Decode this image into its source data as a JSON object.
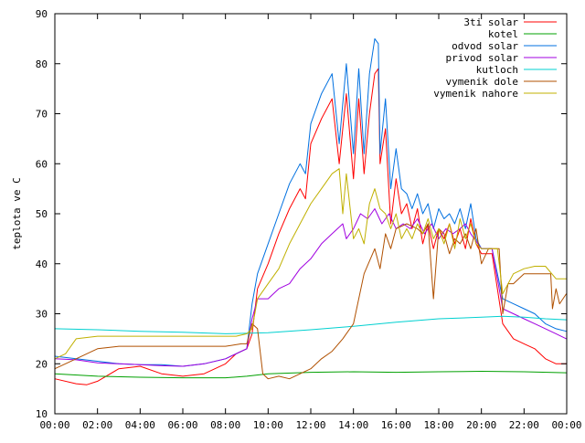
{
  "chart_data": {
    "type": "line",
    "title": "",
    "xlabel": "",
    "ylabel": "teplota ve C",
    "xlim": [
      "00:00",
      "24:00"
    ],
    "ylim": [
      10,
      90
    ],
    "x_ticks": [
      "00:00",
      "02:00",
      "04:00",
      "06:00",
      "08:00",
      "10:00",
      "12:00",
      "14:00",
      "16:00",
      "18:00",
      "20:00",
      "22:00",
      "00:00"
    ],
    "y_ticks": [
      "10",
      "20",
      "30",
      "40",
      "50",
      "60",
      "70",
      "80",
      "90"
    ],
    "legend_position": "top-right",
    "grid": false,
    "series": [
      {
        "name": "3ti solar",
        "color": "#ff0000",
        "x": [
          "00:00",
          "01:00",
          "01:30",
          "02:00",
          "03:00",
          "04:00",
          "05:00",
          "06:00",
          "07:00",
          "08:00",
          "08:30",
          "09:00",
          "09:15",
          "09:30",
          "10:00",
          "10:30",
          "11:00",
          "11:30",
          "11:45",
          "12:00",
          "12:30",
          "13:00",
          "13:20",
          "13:40",
          "14:00",
          "14:15",
          "14:30",
          "14:45",
          "15:00",
          "15:10",
          "15:15",
          "15:30",
          "15:45",
          "16:00",
          "16:15",
          "16:30",
          "16:45",
          "17:00",
          "17:15",
          "17:30",
          "17:45",
          "18:00",
          "18:15",
          "18:30",
          "18:45",
          "19:00",
          "19:15",
          "19:30",
          "19:45",
          "20:00",
          "20:30",
          "21:00",
          "21:30",
          "22:00",
          "22:30",
          "23:00",
          "23:30",
          "23:59"
        ],
        "y": [
          17,
          16,
          15.8,
          16.5,
          19,
          19.5,
          18,
          17.5,
          18,
          20,
          22,
          23,
          26,
          35,
          40,
          46,
          51,
          55,
          53,
          64,
          69,
          73,
          60,
          74,
          57,
          73,
          58,
          70,
          78,
          79,
          60,
          67,
          48,
          57,
          50,
          52,
          47,
          51,
          44,
          48,
          43,
          47,
          45,
          48,
          44,
          47,
          43,
          49,
          44,
          42,
          42,
          28,
          25,
          24,
          23,
          21,
          20,
          20
        ]
      },
      {
        "name": "kotel",
        "color": "#00a000",
        "x": [
          "00:00",
          "02:00",
          "04:00",
          "06:00",
          "08:00",
          "09:00",
          "10:00",
          "12:00",
          "14:00",
          "16:00",
          "18:00",
          "20:00",
          "22:00",
          "23:59"
        ],
        "y": [
          18,
          17.5,
          17.3,
          17.2,
          17.2,
          17.5,
          18,
          18.3,
          18.4,
          18.3,
          18.4,
          18.5,
          18.4,
          18.2
        ]
      },
      {
        "name": "odvod solar",
        "color": "#0070e0",
        "x": [
          "00:00",
          "01:00",
          "02:00",
          "03:00",
          "04:00",
          "05:00",
          "06:00",
          "07:00",
          "08:00",
          "08:30",
          "09:00",
          "09:15",
          "09:30",
          "10:00",
          "10:30",
          "11:00",
          "11:30",
          "11:45",
          "12:00",
          "12:30",
          "13:00",
          "13:20",
          "13:40",
          "14:00",
          "14:15",
          "14:30",
          "14:45",
          "15:00",
          "15:10",
          "15:15",
          "15:30",
          "15:45",
          "16:00",
          "16:15",
          "16:30",
          "16:45",
          "17:00",
          "17:15",
          "17:30",
          "17:45",
          "18:00",
          "18:15",
          "18:30",
          "18:45",
          "19:00",
          "19:15",
          "19:30",
          "19:45",
          "20:00",
          "20:30",
          "21:00",
          "21:30",
          "22:00",
          "22:30",
          "23:00",
          "23:30",
          "23:59"
        ],
        "y": [
          21.5,
          21,
          20.5,
          20,
          19.8,
          19.8,
          19.5,
          20,
          21,
          22,
          23,
          32,
          38,
          44,
          50,
          56,
          60,
          58,
          68,
          74,
          78,
          64,
          80,
          62,
          79,
          62,
          78,
          85,
          84,
          62,
          73,
          55,
          63,
          55,
          54,
          51,
          54,
          50,
          52,
          47,
          51,
          49,
          50,
          48,
          51,
          47,
          52,
          45,
          43,
          43,
          33,
          32,
          31,
          30,
          28,
          27,
          26.5
        ]
      },
      {
        "name": "privod solar",
        "color": "#a000e0",
        "x": [
          "00:00",
          "01:00",
          "02:00",
          "03:00",
          "04:00",
          "05:00",
          "06:00",
          "07:00",
          "08:00",
          "08:30",
          "09:00",
          "09:15",
          "09:30",
          "10:00",
          "10:30",
          "11:00",
          "11:30",
          "12:00",
          "12:30",
          "13:00",
          "13:30",
          "13:40",
          "14:00",
          "14:20",
          "14:40",
          "15:00",
          "15:20",
          "15:40",
          "16:00",
          "16:20",
          "16:40",
          "17:00",
          "17:20",
          "17:40",
          "18:00",
          "18:20",
          "18:40",
          "19:00",
          "19:15",
          "19:30",
          "20:00",
          "20:30",
          "21:00",
          "21:30",
          "22:00",
          "22:30",
          "23:00",
          "23:30",
          "23:59"
        ],
        "y": [
          21,
          20.8,
          20.2,
          20,
          19.8,
          19.6,
          19.5,
          20,
          21,
          22,
          23,
          29,
          33,
          33,
          35,
          36,
          39,
          41,
          44,
          46,
          48,
          45,
          47,
          50,
          49,
          51,
          48,
          50,
          47,
          48,
          47,
          49,
          46,
          48,
          45,
          47,
          46,
          47,
          48,
          46,
          43,
          43,
          31,
          30,
          29,
          28,
          27,
          26,
          25
        ]
      },
      {
        "name": "kutloch",
        "color": "#00d0d0",
        "x": [
          "00:00",
          "02:00",
          "04:00",
          "06:00",
          "08:00",
          "10:00",
          "12:00",
          "14:00",
          "16:00",
          "18:00",
          "20:00",
          "21:00",
          "22:00",
          "23:00",
          "23:59"
        ],
        "y": [
          27,
          26.8,
          26.5,
          26.3,
          26,
          26.2,
          26.8,
          27.5,
          28.3,
          29,
          29.3,
          29.5,
          29.3,
          29,
          28.8
        ]
      },
      {
        "name": "vymenik dole",
        "color": "#b05000",
        "x": [
          "00:00",
          "01:00",
          "02:00",
          "03:00",
          "04:00",
          "05:00",
          "06:00",
          "07:00",
          "08:00",
          "08:45",
          "09:00",
          "09:15",
          "09:30",
          "09:45",
          "10:00",
          "10:30",
          "11:00",
          "11:30",
          "12:00",
          "12:30",
          "13:00",
          "13:30",
          "14:00",
          "14:30",
          "15:00",
          "15:15",
          "15:30",
          "15:45",
          "16:00",
          "16:30",
          "17:00",
          "17:15",
          "17:30",
          "17:45",
          "18:00",
          "18:15",
          "18:30",
          "18:45",
          "19:00",
          "19:15",
          "19:30",
          "19:45",
          "20:00",
          "20:20",
          "20:40",
          "20:50",
          "21:00",
          "21:15",
          "21:30",
          "22:00",
          "22:30",
          "23:00",
          "23:15",
          "23:20",
          "23:30",
          "23:40",
          "23:59"
        ],
        "y": [
          19,
          21,
          23,
          23.5,
          23.5,
          23.5,
          23.5,
          23.5,
          23.5,
          24,
          24,
          28,
          27,
          18,
          17,
          17.5,
          17,
          18,
          19,
          21,
          22.5,
          25,
          28,
          38,
          43,
          39,
          46,
          43,
          47,
          48,
          47,
          46,
          48,
          33,
          47,
          46,
          42,
          45,
          44,
          46,
          43,
          47,
          40,
          43,
          43,
          43,
          30,
          36,
          36,
          38,
          38,
          38,
          38,
          31,
          35,
          32,
          34
        ]
      },
      {
        "name": "vymenik nahore",
        "color": "#c0b000",
        "x": [
          "00:00",
          "00:30",
          "01:00",
          "02:00",
          "03:00",
          "04:00",
          "05:00",
          "06:00",
          "07:00",
          "08:00",
          "08:30",
          "09:00",
          "09:15",
          "09:30",
          "10:00",
          "10:30",
          "11:00",
          "11:30",
          "12:00",
          "12:30",
          "13:00",
          "13:20",
          "13:30",
          "13:40",
          "14:00",
          "14:15",
          "14:30",
          "14:45",
          "15:00",
          "15:15",
          "15:30",
          "15:45",
          "16:00",
          "16:15",
          "16:30",
          "16:45",
          "17:00",
          "17:15",
          "17:30",
          "17:45",
          "18:00",
          "18:15",
          "18:30",
          "18:45",
          "19:00",
          "19:15",
          "19:30",
          "19:45",
          "20:00",
          "20:30",
          "20:45",
          "21:00",
          "21:30",
          "22:00",
          "22:30",
          "23:00",
          "23:30",
          "23:59"
        ],
        "y": [
          21,
          22,
          25,
          25.5,
          25.5,
          25.5,
          25.5,
          25.5,
          25.5,
          25.5,
          25.5,
          26,
          27,
          33,
          36,
          39,
          44,
          48,
          52,
          55,
          58,
          59,
          50,
          58,
          45,
          47,
          44,
          52,
          55,
          51,
          50,
          47,
          50,
          45,
          47,
          45,
          48,
          46,
          49,
          45,
          47,
          44,
          48,
          43,
          49,
          45,
          48,
          44,
          43,
          43,
          43,
          34,
          38,
          39,
          39.5,
          39.5,
          37,
          37
        ]
      }
    ]
  }
}
